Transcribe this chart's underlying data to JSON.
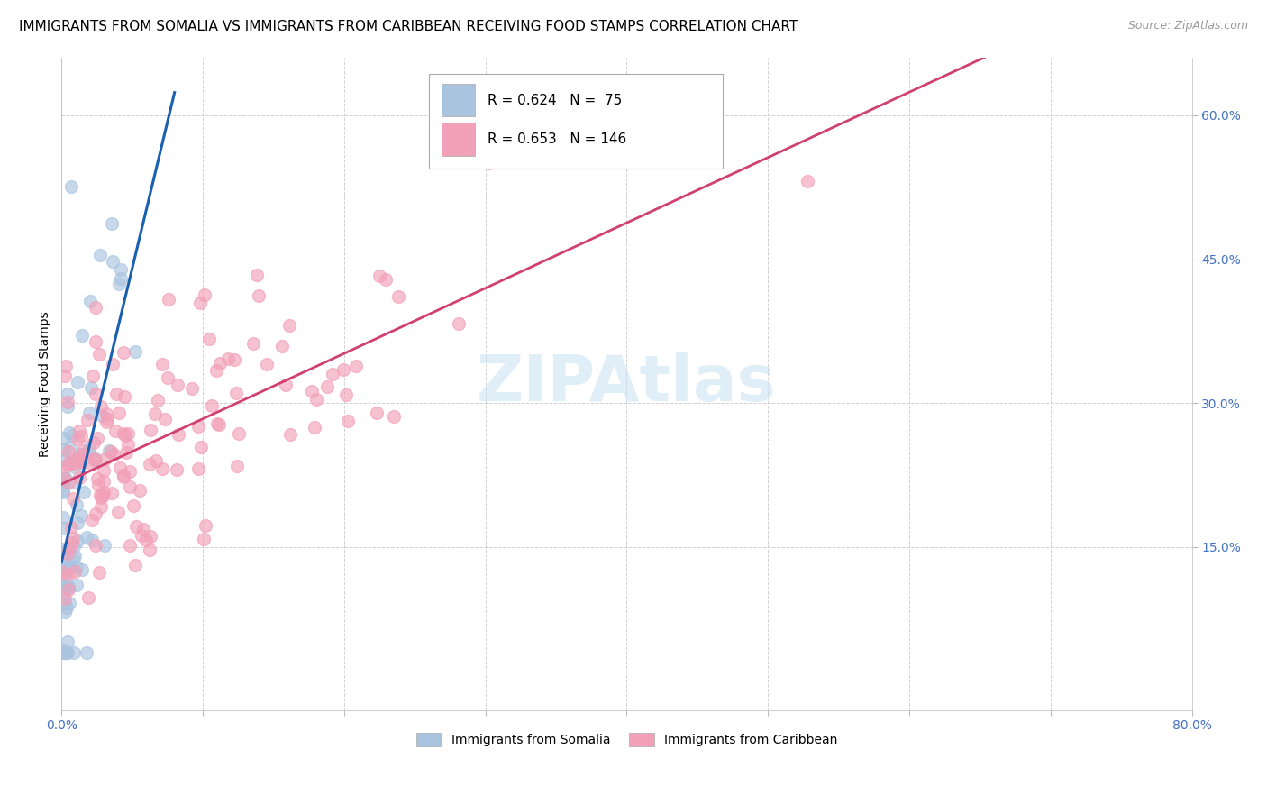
{
  "title": "IMMIGRANTS FROM SOMALIA VS IMMIGRANTS FROM CARIBBEAN RECEIVING FOOD STAMPS CORRELATION CHART",
  "source": "Source: ZipAtlas.com",
  "ylabel": "Receiving Food Stamps",
  "xlim": [
    0.0,
    0.8
  ],
  "ylim": [
    -0.02,
    0.66
  ],
  "xtick_values": [
    0.0,
    0.1,
    0.2,
    0.3,
    0.4,
    0.5,
    0.6,
    0.7,
    0.8
  ],
  "xtick_labels_show": {
    "0.0": "0.0%",
    "0.8": "80.0%"
  },
  "ytick_values": [
    0.15,
    0.3,
    0.45,
    0.6
  ],
  "ytick_labels_right": [
    "15.0%",
    "30.0%",
    "45.0%",
    "60.0%"
  ],
  "legend_labels": [
    "Immigrants from Somalia",
    "Immigrants from Caribbean"
  ],
  "somalia_R": 0.624,
  "somalia_N": 75,
  "caribbean_R": 0.653,
  "caribbean_N": 146,
  "somalia_color": "#aac4e0",
  "caribbean_color": "#f2a0b8",
  "somalia_line_color": "#1a5fb0",
  "caribbean_line_color": "#d04070",
  "watermark": "ZIPAtlas",
  "background_color": "#ffffff",
  "title_fontsize": 11,
  "source_fontsize": 9,
  "axis_label_fontsize": 10,
  "tick_fontsize": 10,
  "legend_fontsize": 10,
  "dot_size": 100,
  "dot_alpha": 0.65
}
